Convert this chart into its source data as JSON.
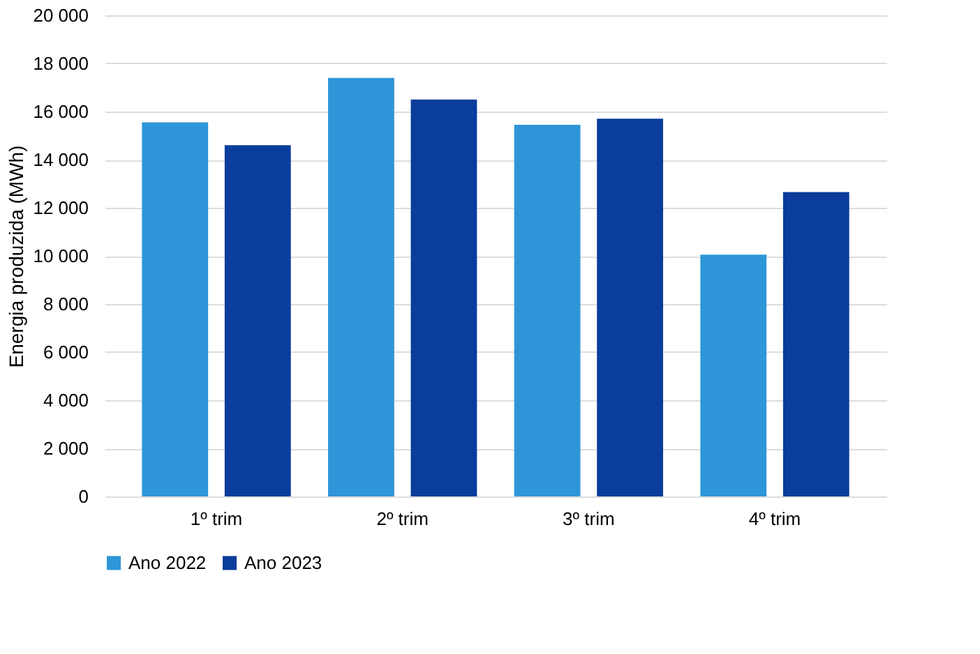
{
  "chart_data": {
    "type": "bar",
    "ylabel": "Energia produzida (MWh)",
    "categories": [
      "1º trim",
      "2º trim",
      "3º trim",
      "4º trim"
    ],
    "series": [
      {
        "name": "Ano 2022",
        "color": "#2e96d8",
        "values": [
          15550,
          17400,
          15450,
          10050
        ]
      },
      {
        "name": "Ano 2023",
        "color": "#0a3d9c",
        "values": [
          14600,
          16500,
          15700,
          12650
        ]
      }
    ],
    "ylim": [
      0,
      20000
    ],
    "yticks": [
      {
        "value": 0,
        "label": "0"
      },
      {
        "value": 2000,
        "label": "2 000"
      },
      {
        "value": 4000,
        "label": "4 000"
      },
      {
        "value": 6000,
        "label": "6 000"
      },
      {
        "value": 8000,
        "label": "8 000"
      },
      {
        "value": 10000,
        "label": "10 000"
      },
      {
        "value": 12000,
        "label": "12 000"
      },
      {
        "value": 14000,
        "label": "14 000"
      },
      {
        "value": 16000,
        "label": "16 000"
      },
      {
        "value": 18000,
        "label": "18 000"
      },
      {
        "value": 20000,
        "label": "20 000"
      }
    ],
    "grid": "y",
    "legend": "bottom"
  }
}
